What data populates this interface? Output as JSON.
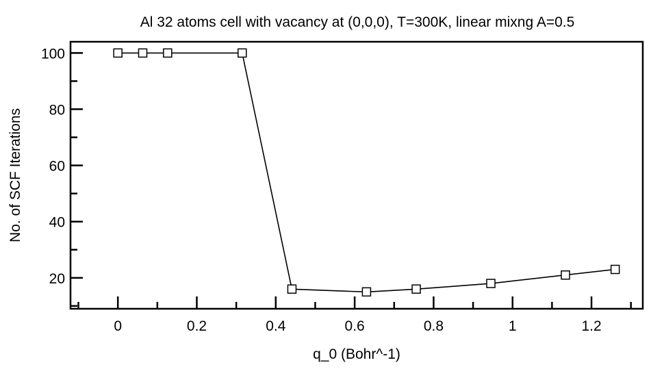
{
  "chart_data": {
    "type": "line",
    "title": "Al 32 atoms cell with vacancy at (0,0,0), T=300K, linear mixng A=0.5",
    "xlabel": "q_0 (Bohr^-1)",
    "ylabel": "No. of SCF Iterations",
    "xlim": [
      -0.12,
      1.33
    ],
    "ylim": [
      9,
      104
    ],
    "x_ticks": [
      0,
      0.2,
      0.4,
      0.6,
      0.8,
      1,
      1.2
    ],
    "x_tick_labels": [
      "0",
      "0.2",
      "0.4",
      "0.6",
      "0.8",
      "1",
      "1.2"
    ],
    "y_ticks": [
      20,
      40,
      60,
      80,
      100
    ],
    "y_tick_labels": [
      "20",
      "40",
      "60",
      "80",
      "100"
    ],
    "grid": false,
    "marker": "open-square",
    "series": [
      {
        "x": [
          0.0,
          0.063,
          0.126,
          0.315,
          0.441,
          0.63,
          0.756,
          0.945,
          1.134,
          1.26
        ],
        "y": [
          100,
          100,
          100,
          100,
          16,
          15,
          16,
          18,
          21,
          23
        ]
      }
    ]
  }
}
